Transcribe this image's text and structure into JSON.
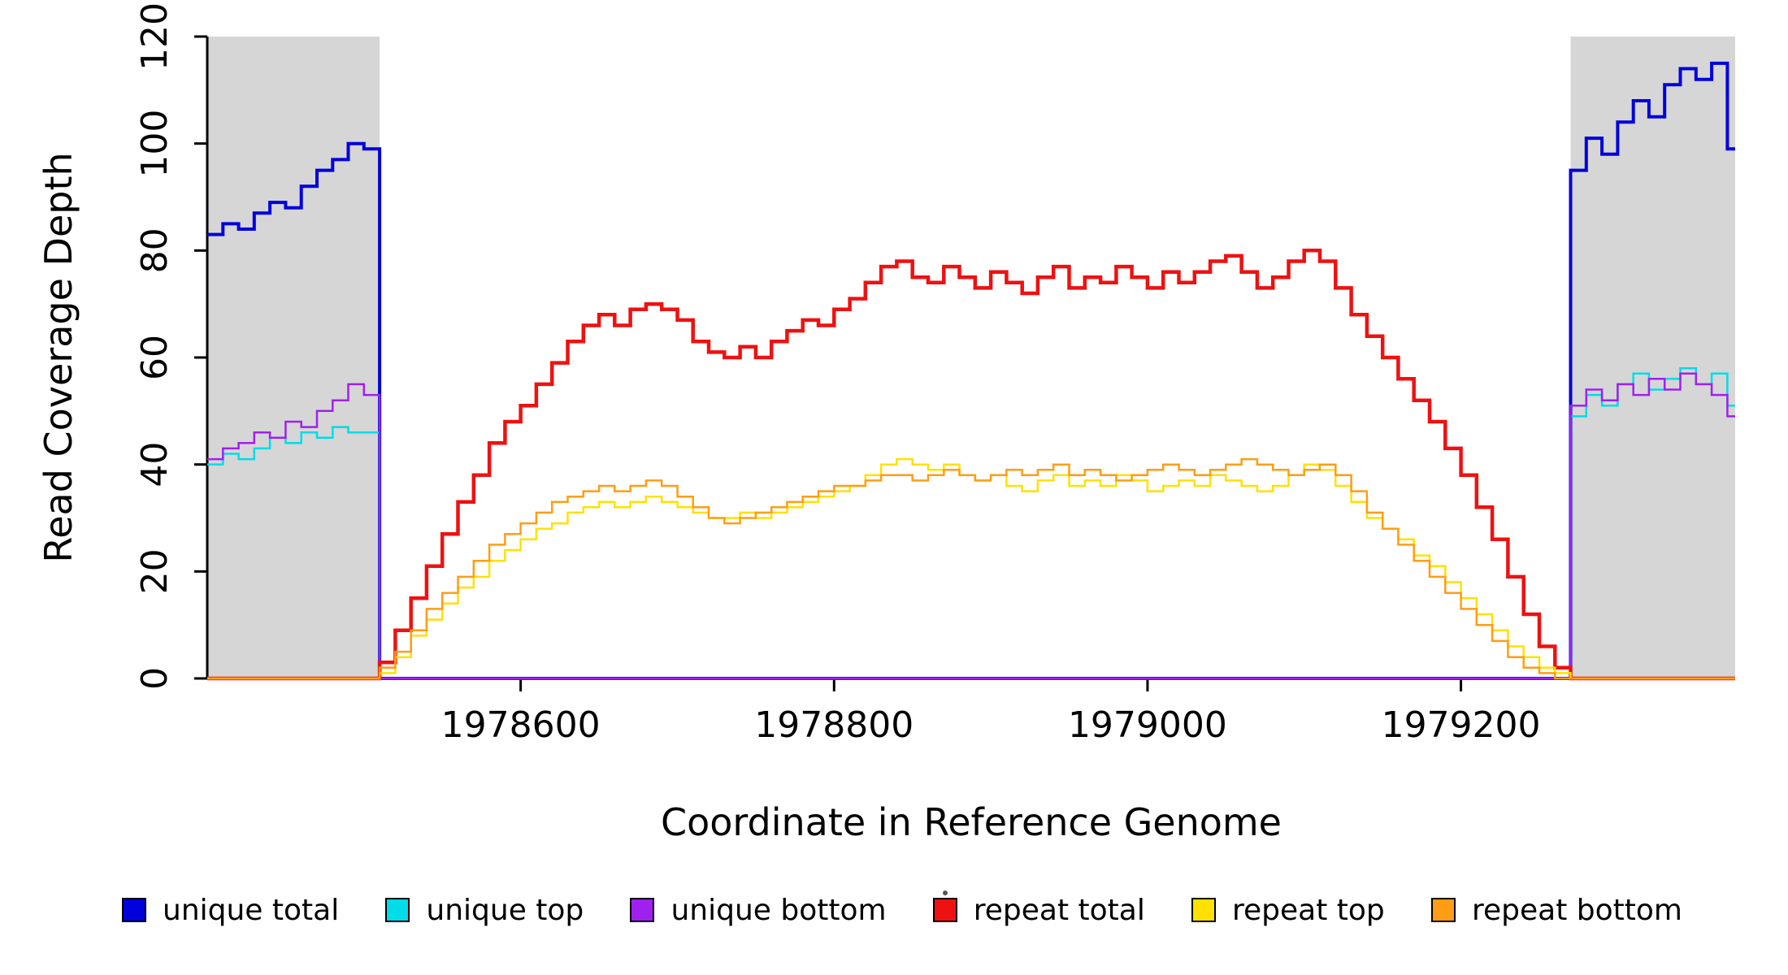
{
  "chart_data": {
    "type": "line",
    "title": "",
    "xlabel": "Coordinate in Reference Genome",
    "ylabel": "Read Coverage Depth",
    "xlim": [
      1978400,
      1979375
    ],
    "ylim": [
      0,
      120
    ],
    "x_ticks": [
      1978600,
      1978800,
      1979000,
      1979200
    ],
    "y_ticks": [
      0,
      20,
      40,
      60,
      80,
      100,
      120
    ],
    "grid": false,
    "legend_position": "bottom",
    "interpolation": "step-after",
    "x_start": 1978400,
    "x_step": 10,
    "n_points": 98,
    "axis_color": "#000000",
    "shaded_regions": [
      {
        "x0": 1978400,
        "x1": 1978510,
        "color": "#d6d6d6"
      },
      {
        "x0": 1979270,
        "x1": 1979375,
        "color": "#d6d6d6"
      }
    ],
    "series": [
      {
        "name": "unique total",
        "color": "#0000dd",
        "width": 4,
        "segments": [
          {
            "x_start": 1978400,
            "values": [
              83,
              85,
              84,
              87,
              89,
              88,
              92,
              95,
              97,
              100,
              99
            ]
          },
          {
            "x_start": 1979270,
            "values": [
              95,
              101,
              98,
              104,
              108,
              105,
              111,
              114,
              112,
              115,
              99
            ]
          }
        ]
      },
      {
        "name": "unique top",
        "color": "#00dce8",
        "width": 2.5,
        "segments": [
          {
            "x_start": 1978400,
            "values": [
              40,
              42,
              41,
              43,
              45,
              44,
              46,
              45,
              47,
              46,
              46
            ]
          },
          {
            "x_start": 1979270,
            "values": [
              49,
              53,
              51,
              55,
              57,
              54,
              56,
              58,
              55,
              57,
              51
            ]
          }
        ]
      },
      {
        "name": "unique bottom",
        "color": "#a020f0",
        "width": 2.5,
        "segments": [
          {
            "x_start": 1978400,
            "values": [
              41,
              43,
              44,
              46,
              45,
              48,
              47,
              50,
              52,
              55,
              53
            ]
          },
          {
            "x_start": 1979270,
            "values": [
              51,
              54,
              52,
              55,
              53,
              56,
              54,
              57,
              55,
              53,
              49
            ]
          }
        ]
      },
      {
        "name": "repeat total",
        "color": "#ee1111",
        "width": 4.5,
        "segments": [
          {
            "x_start": 1978510,
            "values": [
              3,
              9,
              15,
              21,
              27,
              33,
              38,
              44,
              48,
              51,
              55,
              59,
              63,
              66,
              68,
              66,
              69,
              70,
              69,
              67,
              63,
              61,
              60,
              62,
              60,
              63,
              65,
              67,
              66,
              69,
              71,
              74,
              77,
              78,
              75,
              74,
              77,
              75,
              73,
              76,
              74,
              72,
              75,
              77,
              73,
              75,
              74,
              77,
              75,
              73,
              76,
              74,
              76,
              78,
              79,
              76,
              73,
              75,
              78,
              80,
              78,
              73,
              68,
              64,
              60,
              56,
              52,
              48,
              43,
              38,
              32,
              26,
              19,
              12,
              6,
              2
            ]
          }
        ]
      },
      {
        "name": "repeat top",
        "color": "#ffe100",
        "width": 2.5,
        "segments": [
          {
            "x_start": 1978510,
            "values": [
              1,
              4,
              8,
              11,
              14,
              17,
              19,
              22,
              24,
              26,
              28,
              29,
              31,
              32,
              33,
              32,
              33,
              34,
              33,
              32,
              31,
              30,
              30,
              31,
              30,
              31,
              32,
              33,
              34,
              35,
              36,
              38,
              40,
              41,
              40,
              39,
              40,
              38,
              37,
              38,
              36,
              35,
              37,
              38,
              36,
              37,
              36,
              38,
              37,
              35,
              36,
              37,
              36,
              38,
              37,
              36,
              35,
              36,
              38,
              40,
              39,
              36,
              33,
              30,
              28,
              26,
              23,
              21,
              18,
              15,
              12,
              9,
              6,
              4,
              2,
              1
            ]
          }
        ]
      },
      {
        "name": "repeat bottom",
        "color": "#ff9d14",
        "width": 2.5,
        "segments": [
          {
            "x_start": 1978510,
            "values": [
              2,
              5,
              9,
              13,
              16,
              19,
              22,
              25,
              27,
              29,
              31,
              33,
              34,
              35,
              36,
              35,
              36,
              37,
              36,
              34,
              32,
              30,
              29,
              30,
              31,
              32,
              33,
              34,
              35,
              36,
              36,
              37,
              38,
              38,
              37,
              38,
              39,
              38,
              37,
              38,
              39,
              38,
              39,
              40,
              38,
              39,
              38,
              37,
              38,
              39,
              40,
              39,
              38,
              39,
              40,
              41,
              40,
              39,
              38,
              39,
              40,
              38,
              35,
              31,
              28,
              25,
              22,
              19,
              16,
              13,
              10,
              7,
              4,
              2,
              1,
              0
            ]
          }
        ]
      }
    ]
  }
}
